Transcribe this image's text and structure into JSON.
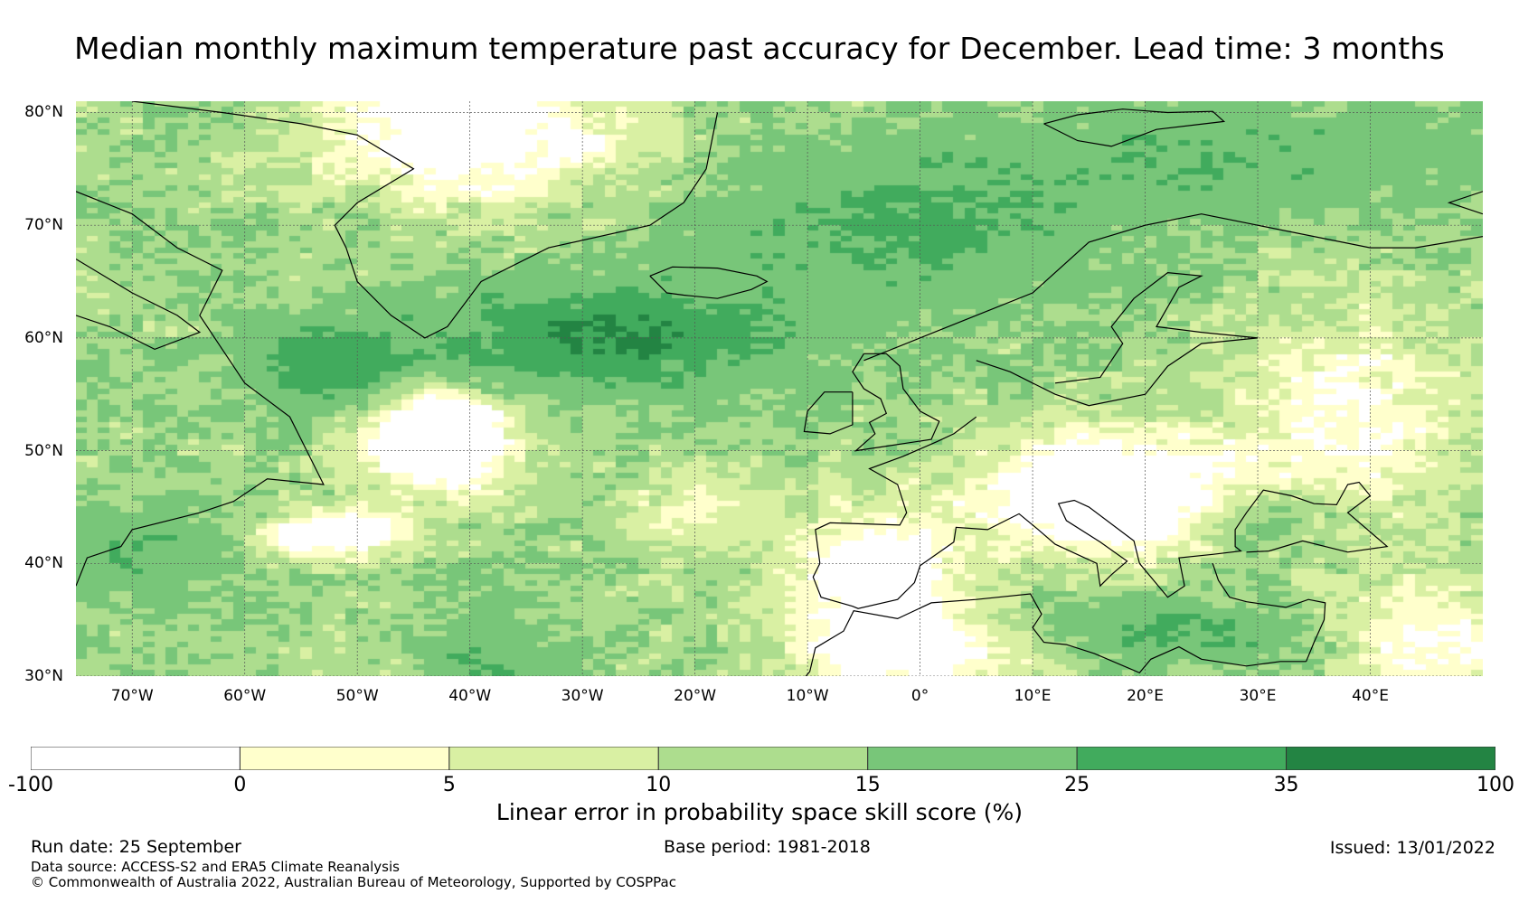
{
  "title": "Median monthly maximum temperature past accuracy for December. Lead time: 3 months",
  "map": {
    "lon_range": [
      -75,
      50
    ],
    "lat_range": [
      30,
      81
    ],
    "lat_labels": [
      "80°N",
      "70°N",
      "60°N",
      "50°N",
      "40°N",
      "30°N"
    ],
    "lat_values": [
      80,
      70,
      60,
      50,
      40,
      30
    ],
    "lon_labels": [
      "70°W",
      "60°W",
      "50°W",
      "40°W",
      "30°W",
      "20°W",
      "10°W",
      "0°",
      "10°E",
      "20°E",
      "30°E",
      "40°E"
    ],
    "lon_values": [
      -70,
      -60,
      -50,
      -40,
      -30,
      -20,
      -10,
      0,
      10,
      20,
      30,
      40
    ]
  },
  "colorbar": {
    "bounds": [
      "-100",
      "0",
      "5",
      "10",
      "15",
      "25",
      "35",
      "100"
    ],
    "colors": [
      "#ffffff",
      "#ffffcc",
      "#d9f0a3",
      "#addd8e",
      "#78c679",
      "#41ab5d",
      "#238443"
    ],
    "label": "Linear error in probability space skill score (%)"
  },
  "footer": {
    "run_date": "Run date: 25 September",
    "base_period": "Base period: 1981-2018",
    "issued": "Issued: 13/01/2022",
    "data_source": "Data source: ACCESS-S2 and ERA5 Climate Reanalysis",
    "copyright": "© Commonwealth of Australia 2022, Australian Bureau of Meteorology, Supported by COSPPac"
  }
}
